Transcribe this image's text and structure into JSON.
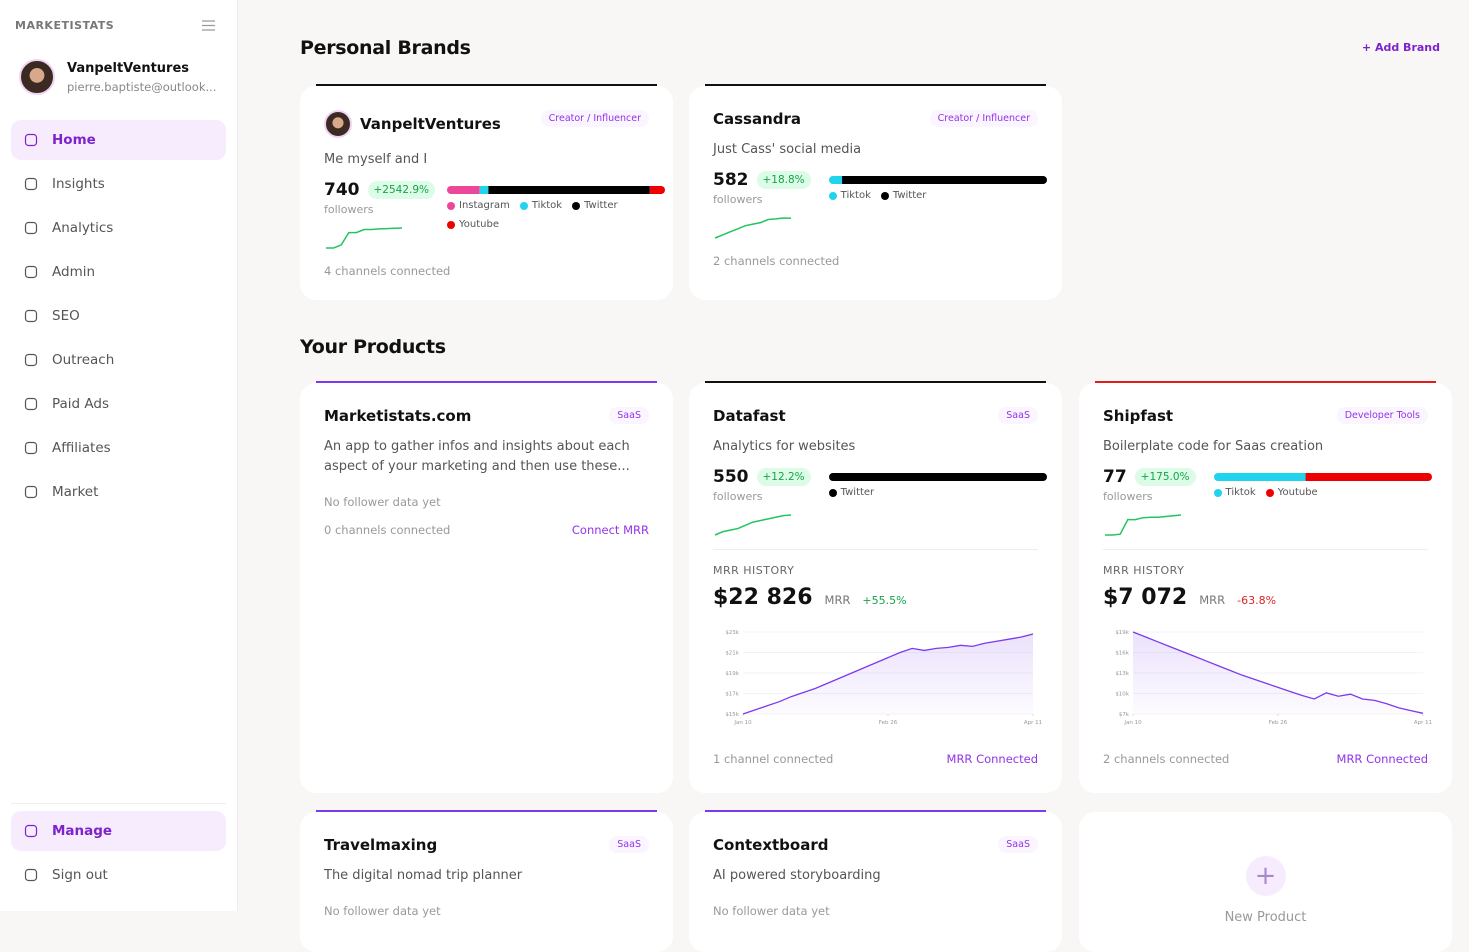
{
  "sidebar": {
    "brand": "MARKETISTATS",
    "user": {
      "name": "VanpeltVentures",
      "email": "pierre.baptiste@outlook..."
    },
    "nav": [
      "Home",
      "Insights",
      "Analytics",
      "Admin",
      "SEO",
      "Outreach",
      "Paid Ads",
      "Affiliates",
      "Market"
    ],
    "bottom_nav": [
      "Manage",
      "Sign out"
    ]
  },
  "personal_brands": {
    "title": "Personal Brands",
    "add": "+ Add Brand",
    "brands": [
      {
        "name": "VanpeltVentures",
        "tag": "Creator / Influencer",
        "description": "Me myself and I",
        "followers": 740,
        "change": "+2542.9%",
        "followers_label": "followers",
        "accent": "#111111",
        "channels": [
          {
            "name": "Instagram",
            "color": "#ec4899",
            "share": 15
          },
          {
            "name": "Tiktok",
            "color": "#22d3ee",
            "share": 4
          },
          {
            "name": "Twitter",
            "color": "#000000",
            "share": 74
          },
          {
            "name": "Youtube",
            "color": "#ef0000",
            "share": 7
          }
        ],
        "sparkline": [
          1,
          1,
          2,
          6,
          6,
          7,
          7,
          7.2,
          7.3,
          7.4,
          7.5
        ],
        "connected": "4 channels connected"
      },
      {
        "name": "Cassandra",
        "tag": "Creator / Influencer",
        "description": "Just Cass' social media",
        "followers": 582,
        "change": "+18.8%",
        "followers_label": "followers",
        "accent": "#111111",
        "channels": [
          {
            "name": "Tiktok",
            "color": "#22d3ee",
            "share": 6
          },
          {
            "name": "Twitter",
            "color": "#000000",
            "share": 94
          }
        ],
        "sparkline": [
          1,
          2,
          3,
          4,
          5,
          5.5,
          6,
          7,
          7.2,
          7.5,
          7.4
        ],
        "connected": "2 channels connected"
      }
    ]
  },
  "products": {
    "title": "Your Products",
    "new": "New Product",
    "items": [
      {
        "name": "Marketistats.com",
        "tag": "SaaS",
        "description": "An app to gather infos and insights about each aspect of your marketing and then use these...",
        "no_data": "No follower data yet",
        "connected": "0 channels connected",
        "action": "Connect MRR",
        "accent": "#7c3aed"
      },
      {
        "name": "Datafast",
        "tag": "SaaS",
        "description": "Analytics for websites",
        "followers": 550,
        "change": "+12.2%",
        "followers_label": "followers",
        "accent": "#111111",
        "channels": [
          {
            "name": "Twitter",
            "color": "#000000",
            "share": 100
          }
        ],
        "sparkline": [
          1,
          2,
          2.5,
          3,
          4,
          5,
          5.5,
          6,
          6.5,
          7,
          7.2
        ],
        "mrr": {
          "label": "MRR HISTORY",
          "value": "$22 826",
          "unit": "MRR",
          "change": "+55.5%",
          "change_color": "#16a34a",
          "values": [
            15,
            15.4,
            15.8,
            16.2,
            16.7,
            17.1,
            17.5,
            18,
            18.5,
            19,
            19.5,
            20,
            20.5,
            21,
            21.4,
            21.2,
            21.4,
            21.5,
            21.7,
            21.6,
            21.9,
            22.1,
            22.3,
            22.5,
            22.8
          ],
          "ylim": [
            15,
            23
          ],
          "yticks": [
            {
              "value": 15,
              "label": "$15k"
            },
            {
              "value": 17,
              "label": "$17k"
            },
            {
              "value": 19,
              "label": "$19k"
            },
            {
              "value": 21,
              "label": "$21k"
            },
            {
              "value": 23,
              "label": "$23k"
            }
          ],
          "xlim": [
            0,
            24
          ],
          "xticks": [
            {
              "value": 0,
              "label": "Jan 10"
            },
            {
              "value": 12,
              "label": "Feb 26"
            },
            {
              "value": 24,
              "label": "Apr 11"
            }
          ]
        },
        "connected": "1 channel connected",
        "action": "MRR Connected"
      },
      {
        "name": "Shipfast",
        "tag": "Developer Tools",
        "description": "Boilerplate code for Saas creation",
        "followers": 77,
        "change": "+175.0%",
        "followers_label": "followers",
        "accent": "#e11d1d",
        "channels": [
          {
            "name": "Tiktok",
            "color": "#22d3ee",
            "share": 42
          },
          {
            "name": "Youtube",
            "color": "#ef0000",
            "share": 58
          }
        ],
        "sparkline": [
          1,
          1,
          1.2,
          5,
          5,
          5.5,
          5.6,
          5.6,
          5.8,
          6,
          6.2
        ],
        "mrr": {
          "label": "MRR HISTORY",
          "value": "$7 072",
          "unit": "MRR",
          "change": "-63.8%",
          "change_color": "#dc2626",
          "values": [
            19,
            18.3,
            17.6,
            16.9,
            16.2,
            15.5,
            14.8,
            14.1,
            13.4,
            12.7,
            12.1,
            11.5,
            10.9,
            10.3,
            9.7,
            9.2,
            10.1,
            9.6,
            9.9,
            9.2,
            9,
            8.5,
            7.9,
            7.5,
            7.1
          ],
          "ylim": [
            7,
            19
          ],
          "yticks": [
            {
              "value": 7,
              "label": "$7k"
            },
            {
              "value": 10,
              "label": "$10k"
            },
            {
              "value": 13,
              "label": "$13k"
            },
            {
              "value": 16,
              "label": "$16k"
            },
            {
              "value": 19,
              "label": "$19k"
            }
          ],
          "xlim": [
            0,
            24
          ],
          "xticks": [
            {
              "value": 0,
              "label": "Jan 10"
            },
            {
              "value": 12,
              "label": "Feb 26"
            },
            {
              "value": 24,
              "label": "Apr 11"
            }
          ]
        },
        "connected": "2 channels connected",
        "action": "MRR Connected"
      },
      {
        "name": "Travelmaxing",
        "tag": "SaaS",
        "description": "The digital nomad trip planner",
        "no_data": "No follower data yet",
        "accent": "#7c3aed"
      },
      {
        "name": "Contextboard",
        "tag": "SaaS",
        "description": "AI powered storyboarding",
        "no_data": "No follower data yet",
        "accent": "#7c3aed"
      }
    ]
  }
}
